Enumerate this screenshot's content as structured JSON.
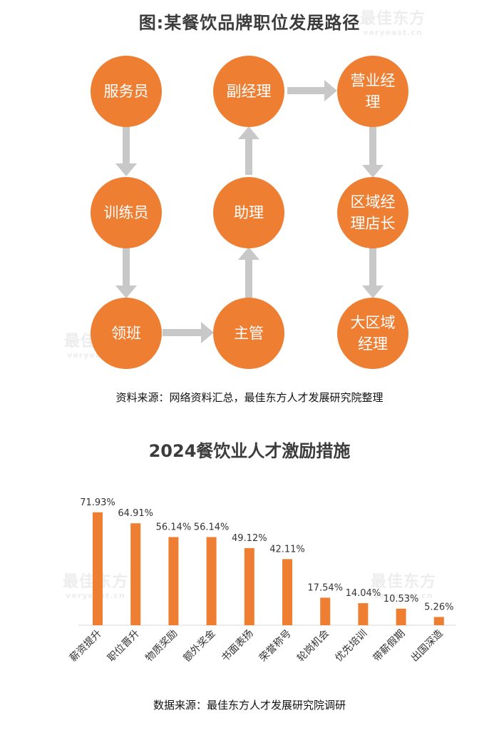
{
  "page": {
    "title": "图:某餐饮品牌职位发展路径",
    "flow_source": "资料来源：网络资料汇总，最佳东方人才发展研究院整理",
    "chart_title": "2024餐饮业人才激励措施",
    "chart_source": "数据来源：最佳东方人才发展研究院调研",
    "watermark_main": "最佳东方",
    "watermark_sub": "veryeast.cn"
  },
  "flow": {
    "node_color": "#ee7e32",
    "arrow_color": "#c8c8c8",
    "nodes": [
      {
        "id": "fuwuyuan",
        "label": "服务员"
      },
      {
        "id": "xunlianyuan",
        "label": "训练员"
      },
      {
        "id": "lingban",
        "label": "领班"
      },
      {
        "id": "zhuguan",
        "label": "主管"
      },
      {
        "id": "zhuli",
        "label": "助理"
      },
      {
        "id": "fujingli",
        "label": "副经理"
      },
      {
        "id": "yingyejingli",
        "label": "营业经理"
      },
      {
        "id": "quyujinglidianzhang",
        "label": "区域经理店长"
      },
      {
        "id": "daquyujingli",
        "label": "大区域经理"
      }
    ]
  },
  "chart_data": {
    "type": "bar",
    "title": "2024餐饮业人才激励措施",
    "categories": [
      "薪资提升",
      "职位晋升",
      "物质奖励",
      "额外奖金",
      "书面表扬",
      "荣誉称号",
      "轮岗机会",
      "优先培训",
      "带薪假期",
      "出国深造"
    ],
    "values": [
      71.93,
      64.91,
      56.14,
      56.14,
      49.12,
      42.11,
      17.54,
      14.04,
      10.53,
      5.26
    ],
    "value_labels": [
      "71.93%",
      "64.91%",
      "56.14%",
      "56.14%",
      "49.12%",
      "42.11%",
      "17.54%",
      "14.04%",
      "10.53%",
      "5.26%"
    ],
    "bar_color": "#ee7e32",
    "ylim": [
      0,
      100
    ],
    "xlabel": "",
    "ylabel": "",
    "grid": false
  }
}
